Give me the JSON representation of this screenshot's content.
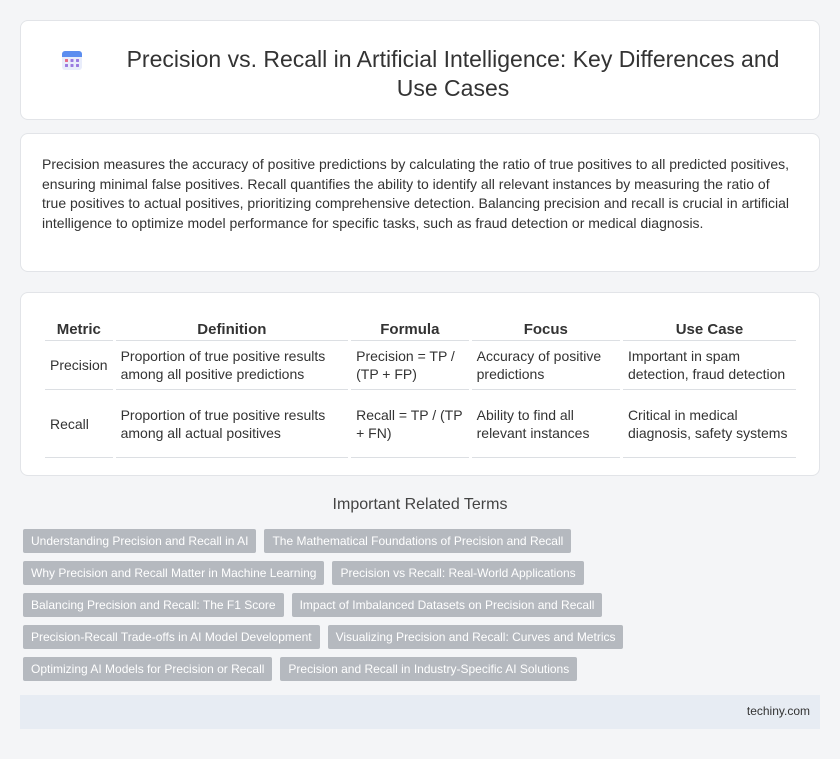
{
  "header": {
    "title": "Precision vs. Recall in Artificial Intelligence: Key Differences and Use Cases",
    "icon": "calendar-grid-icon"
  },
  "intro": {
    "text": "Precision measures the accuracy of positive predictions by calculating the ratio of true positives to all predicted positives, ensuring minimal false positives. Recall quantifies the ability to identify all relevant instances by measuring the ratio of true positives to actual positives, prioritizing comprehensive detection. Balancing precision and recall is crucial in artificial intelligence to optimize model performance for specific tasks, such as fraud detection or medical diagnosis."
  },
  "table": {
    "headers": [
      "Metric",
      "Definition",
      "Formula",
      "Focus",
      "Use Case"
    ],
    "rows": [
      [
        "Precision",
        "Proportion of true positive results among all positive predictions",
        "Precision = TP / (TP + FP)",
        "Accuracy of positive predictions",
        "Important in spam detection, fraud detection"
      ],
      [
        "Recall",
        "Proportion of true positive results among all actual positives",
        "Recall = TP / (TP + FN)",
        "Ability to find all relevant instances",
        "Critical in medical diagnosis, safety systems"
      ]
    ]
  },
  "related": {
    "heading": "Important Related Terms",
    "tags": [
      [
        "Understanding Precision and Recall in AI",
        "The Mathematical Foundations of Precision and Recall"
      ],
      [
        "Why Precision and Recall Matter in Machine Learning",
        "Precision vs Recall: Real-World Applications"
      ],
      [
        "Balancing Precision and Recall: The F1 Score",
        "Impact of Imbalanced Datasets on Precision and Recall"
      ],
      [
        "Precision-Recall Trade-offs in AI Model Development",
        "Visualizing Precision and Recall: Curves and Metrics"
      ],
      [
        "Optimizing AI Models for Precision or Recall",
        "Precision and Recall in Industry-Specific AI Solutions"
      ]
    ]
  },
  "footer": {
    "site": "techiny.com"
  },
  "colors": {
    "tag_bg": "#b5b9bf",
    "footer_bg": "#e7ecf3",
    "icon_accent": "#5b8def"
  }
}
